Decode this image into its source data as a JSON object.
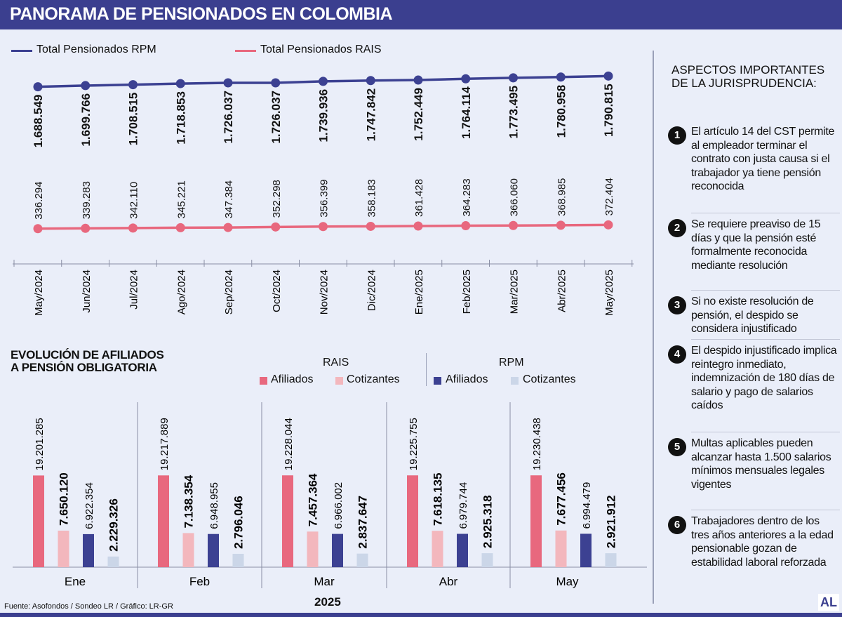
{
  "header": {
    "title": "PANORAMA DE PENSIONADOS EN COLOMBIA"
  },
  "colors": {
    "rpm": "#3c4192",
    "rais": "#e8687e",
    "rais_cotizantes": "#f3b7bd",
    "rpm_cotizantes": "#cbd6e8",
    "header": "#3b3f8f"
  },
  "chart_data": [
    {
      "type": "line",
      "categories": [
        "May/2024",
        "Jun/2024",
        "Jul/2024",
        "Ago/2024",
        "Sep/2024",
        "Oct/2024",
        "Nov/2024",
        "Dic/2024",
        "Ene/2025",
        "Feb/2025",
        "Mar/2025",
        "Abr/2025",
        "May/2025"
      ],
      "series": [
        {
          "name": "Total Pensionados RPM",
          "values": [
            1688549,
            1699766,
            1708515,
            1718853,
            1726037,
            1726037,
            1739936,
            1747842,
            1752449,
            1764114,
            1773495,
            1780958,
            1790815
          ],
          "labels": [
            "1.688.549",
            "1.699.766",
            "1.708.515",
            "1.718.853",
            "1.726.037",
            "1.726.037",
            "1.739.936",
            "1.747.842",
            "1.752.449",
            "1.764.114",
            "1.773.495",
            "1.780.958",
            "1.790.815"
          ]
        },
        {
          "name": "Total Pensionados RAIS",
          "values": [
            336294,
            339283,
            342110,
            345221,
            347384,
            352298,
            356399,
            358183,
            361428,
            364283,
            366060,
            368985,
            372404
          ],
          "labels": [
            "336.294",
            "339.283",
            "342.110",
            "345.221",
            "347.384",
            "352.298",
            "356.399",
            "358.183",
            "361.428",
            "364.283",
            "366.060",
            "368.985",
            "372.404"
          ]
        }
      ],
      "ylim": [
        0,
        1900000
      ],
      "grid": false,
      "legend": "top-left"
    },
    {
      "type": "bar",
      "title": "EVOLUCIÓN DE AFILIADOS A PENSIÓN OBLIGATORIA",
      "title_lines": [
        "EVOLUCIÓN DE AFILIADOS",
        "A PENSIÓN OBLIGATORIA"
      ],
      "xlabel": "2025",
      "categories": [
        "Ene",
        "Feb",
        "Mar",
        "Abr",
        "May"
      ],
      "legend_groups": [
        {
          "name": "RAIS",
          "items": [
            "Afiliados",
            "Cotizantes"
          ]
        },
        {
          "name": "RPM",
          "items": [
            "Afiliados",
            "Cotizantes"
          ]
        }
      ],
      "series": [
        {
          "name": "RAIS Afiliados",
          "values": [
            19201285,
            19217889,
            19228044,
            19225755,
            19230438
          ],
          "labels": [
            "19.201.285",
            "19.217.889",
            "19.228.044",
            "19.225.755",
            "19.230.438"
          ]
        },
        {
          "name": "RAIS Cotizantes",
          "values": [
            7650120,
            7138354,
            7457364,
            7618135,
            7677456
          ],
          "labels": [
            "7.650.120",
            "7.138.354",
            "7.457.364",
            "7.618.135",
            "7.677.456"
          ]
        },
        {
          "name": "RPM Afiliados",
          "values": [
            6922354,
            6948955,
            6966002,
            6979744,
            6994479
          ],
          "labels": [
            "6.922.354",
            "6.948.955",
            "6.966.002",
            "6.979.744",
            "6.994.479"
          ]
        },
        {
          "name": "RPM Cotizantes",
          "values": [
            2229326,
            2796046,
            2837647,
            2925318,
            2921912
          ],
          "labels": [
            "2.229.326",
            "2.796.046",
            "2.837.647",
            "2.925.318",
            "2.921.912"
          ]
        }
      ],
      "ylim": [
        0,
        20000000
      ],
      "grid": false,
      "legend": "top-right"
    }
  ],
  "aside": {
    "title": "ASPECTOS IMPORTANTES DE LA JURISPRUDENCIA:",
    "items": [
      {
        "n": "1",
        "text": "El artículo 14 del CST permite al empleador terminar el contrato con justa causa si el trabajador ya tiene pensión reconocida"
      },
      {
        "n": "2",
        "text": "Se requiere preaviso de 15 días y que la pensión esté formalmente reconocida mediante resolución"
      },
      {
        "n": "3",
        "text": "Si no existe resolución de pensión, el despido se considera injustificado"
      },
      {
        "n": "4",
        "text": "El despido injustificado implica reintegro inmediato, indemnización de 180 días de salario y pago de salarios caídos"
      },
      {
        "n": "5",
        "text": "Multas aplicables pueden alcanzar hasta 1.500 salarios mínimos mensuales legales vigentes"
      },
      {
        "n": "6",
        "text": "Trabajadores dentro de los tres años anteriores a la edad pensionable gozan de estabilidad laboral reforzada"
      }
    ]
  },
  "footer": {
    "source": "Fuente: Asofondos / Sondeo LR / Gráfico: LR-GR",
    "logo": "AL"
  }
}
